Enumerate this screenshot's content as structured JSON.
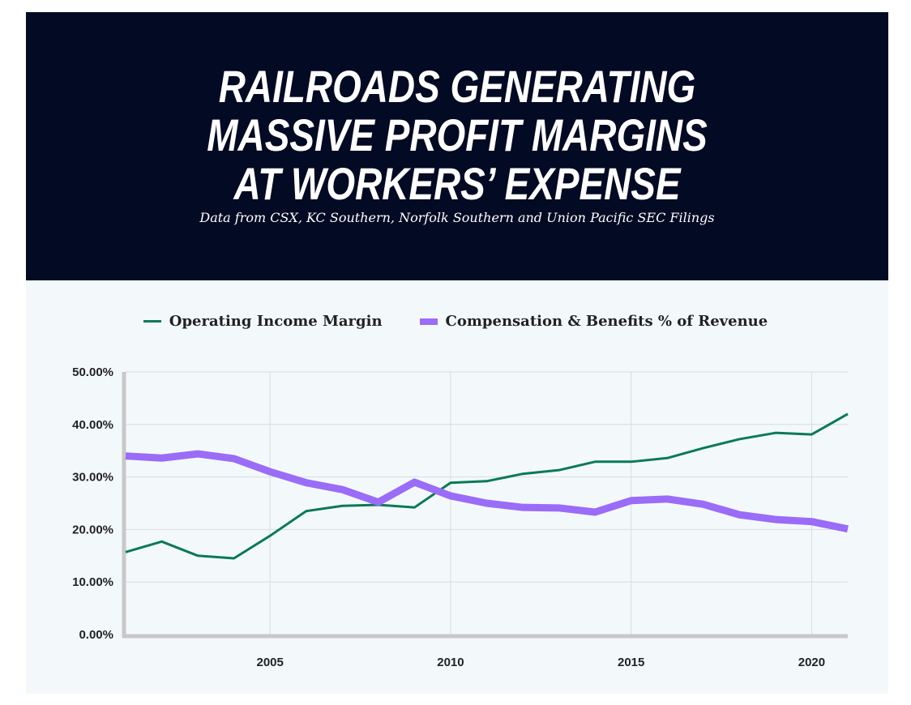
{
  "header": {
    "title_lines": [
      "RAILROADS GENERATING",
      "MASSIVE PROFIT MARGINS",
      "AT WORKERS’ EXPENSE"
    ],
    "subtitle": "Data from CSX, KC Southern, Norfolk Southern and Union Pacific SEC Filings"
  },
  "chart_data": {
    "type": "line",
    "title": "RAILROADS GENERATING MASSIVE PROFIT MARGINS AT WORKERS’ EXPENSE",
    "x": [
      2001,
      2002,
      2003,
      2004,
      2005,
      2006,
      2007,
      2008,
      2009,
      2010,
      2011,
      2012,
      2013,
      2014,
      2015,
      2016,
      2017,
      2018,
      2019,
      2020,
      2021
    ],
    "series": [
      {
        "name": "Operating Income Margin",
        "color": "#0a7a55",
        "values": [
          15.7,
          17.7,
          15.0,
          14.5,
          18.8,
          23.5,
          24.5,
          24.7,
          24.2,
          28.9,
          29.2,
          30.6,
          31.3,
          32.9,
          32.9,
          33.6,
          35.5,
          37.2,
          38.4,
          38.1,
          42.0
        ]
      },
      {
        "name": "Compensation & Benefits % of Revenue",
        "color": "#9a6cf7",
        "values": [
          34.0,
          33.6,
          34.4,
          33.5,
          31.0,
          28.9,
          27.6,
          25.2,
          29.0,
          26.4,
          25.0,
          24.2,
          24.1,
          23.3,
          25.5,
          25.8,
          24.8,
          22.8,
          21.9,
          21.5,
          20.1
        ]
      }
    ],
    "xlim": [
      2001,
      2021
    ],
    "ylim": [
      0,
      50
    ],
    "x_ticks": [
      "2005",
      "2010",
      "2015",
      "2020"
    ],
    "x_tick_values": [
      2005,
      2010,
      2015,
      2020
    ],
    "y_ticks": [
      "0.00%",
      "10.00%",
      "20.00%",
      "30.00%",
      "40.00%",
      "50.00%"
    ],
    "y_tick_values": [
      0,
      10,
      20,
      30,
      40,
      50
    ],
    "grid": true,
    "legend": "top-center",
    "xlabel": "",
    "ylabel": ""
  }
}
